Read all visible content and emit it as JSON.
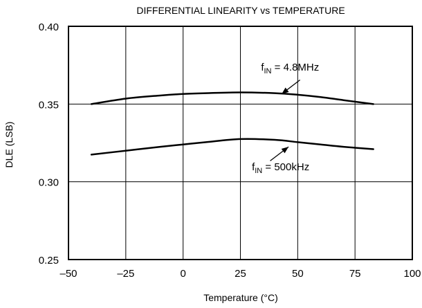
{
  "chart_data": {
    "type": "line",
    "title": "DIFFERENTIAL LINEARITY vs TEMPERATURE",
    "xlabel": "Temperature (°C)",
    "ylabel": "DLE (LSB)",
    "xlim": [
      -50,
      100
    ],
    "ylim": [
      0.25,
      0.4
    ],
    "xticks": [
      -50,
      -25,
      0,
      25,
      50,
      75,
      100
    ],
    "yticks": [
      0.25,
      0.3,
      0.35,
      0.4
    ],
    "xtick_labels": [
      "–50",
      "–25",
      "0",
      "25",
      "50",
      "75",
      "100"
    ],
    "ytick_labels": [
      "0.25",
      "0.30",
      "0.35",
      "0.40"
    ],
    "grid": true,
    "legend": "none",
    "line_color": "#000000",
    "grid_color": "#000000",
    "series": [
      {
        "x": [
          -40,
          -25,
          -10,
          0,
          10,
          25,
          40,
          50,
          60,
          70,
          83
        ],
        "y": [
          0.35,
          0.3535,
          0.3555,
          0.3565,
          0.357,
          0.3575,
          0.357,
          0.356,
          0.3545,
          0.3525,
          0.35
        ]
      },
      {
        "x": [
          -40,
          -25,
          -10,
          0,
          10,
          25,
          40,
          50,
          60,
          70,
          83
        ],
        "y": [
          0.3175,
          0.32,
          0.3225,
          0.324,
          0.3255,
          0.3275,
          0.327,
          0.3255,
          0.324,
          0.3225,
          0.321
        ]
      }
    ],
    "annotations": [
      {
        "label_main": "f",
        "label_sub": "IN",
        "label_rest": " = 4.8MHz",
        "text_at": [
          34,
          0.3715
        ],
        "arrow_from": [
          51,
          0.3655
        ],
        "arrow_to": [
          43,
          0.3565
        ]
      },
      {
        "label_main": "f",
        "label_sub": "IN",
        "label_rest": " = 500kHz",
        "text_at": [
          30,
          0.3075
        ],
        "arrow_from": [
          38,
          0.3135
        ],
        "arrow_to": [
          46,
          0.3225
        ]
      }
    ]
  }
}
